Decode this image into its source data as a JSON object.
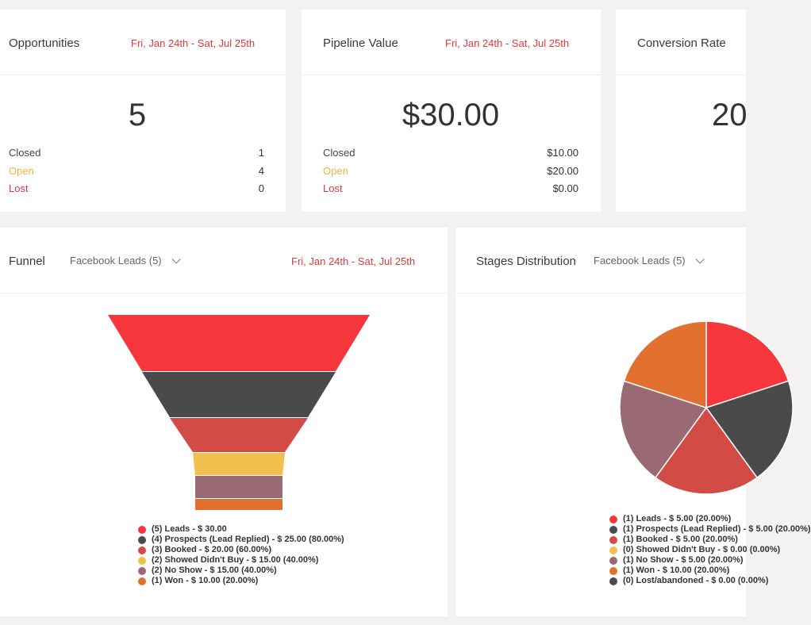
{
  "cards": [
    {
      "title": "Opportunities",
      "date": "Fri, Jan 24th - Sat, Jul 25th",
      "value": "5",
      "rows": [
        {
          "label": "Closed",
          "value": "1"
        },
        {
          "label": "Open",
          "value": "4"
        },
        {
          "label": "Lost",
          "value": "0"
        }
      ]
    },
    {
      "title": "Pipeline Value",
      "date": "Fri, Jan 24th - Sat, Jul 25th",
      "value": "$30.00",
      "rows": [
        {
          "label": "Closed",
          "value": "$10.00"
        },
        {
          "label": "Open",
          "value": "$20.00"
        },
        {
          "label": "Lost",
          "value": "$0.00"
        }
      ]
    },
    {
      "title": "Conversion Rate",
      "value": "20"
    }
  ],
  "funnel": {
    "title": "Funnel",
    "pipeline": "Facebook Leads (5)",
    "date": "Fri, Jan 24th - Sat, Jul 25th",
    "legend": [
      "(5) Leads - $ 30.00",
      "(4) Prospects (Lead Replied) - $ 25.00 (80.00%)",
      "(3) Booked - $ 20.00 (60.00%)",
      "(2) Showed Didn't Buy - $ 15.00 (40.00%)",
      "(2) No Show - $ 15.00 (40.00%)",
      "(1) Won - $ 10.00 (20.00%)"
    ]
  },
  "stages": {
    "title": "Stages Distribution",
    "pipeline": "Facebook Leads (5)",
    "legend": [
      "(1) Leads - $ 5.00 (20.00%)",
      "(1) Prospects (Lead Replied) - $ 5.00 (20.00%)",
      "(1) Booked - $ 5.00 (20.00%)",
      "(0) Showed Didn't Buy - $ 0.00 (0.00%)",
      "(1) No Show - $ 5.00 (20.00%)",
      "(1) Won - $ 10.00 (20.00%)",
      "(0) Lost/abandoned - $ 0.00 (0.00%)"
    ]
  },
  "colors": {
    "red": "#f5373c",
    "dark": "#4a4a4a",
    "booked": "#d24b44",
    "yellow": "#f0bf4c",
    "mauve": "#9a6a74",
    "orange": "#e2702f",
    "date": "#e0393e",
    "open": "#f0b43c"
  },
  "chart_data": [
    {
      "type": "bar",
      "orientation": "funnel",
      "categories": [
        "Leads",
        "Prospects (Lead Replied)",
        "Booked",
        "Showed Didn't Buy",
        "No Show",
        "Won"
      ],
      "values": [
        5,
        4,
        3,
        2,
        2,
        1
      ],
      "amounts": [
        30,
        25,
        20,
        15,
        15,
        10
      ],
      "percent": [
        100,
        80,
        60,
        40,
        40,
        20
      ],
      "colors": [
        "#f5373c",
        "#4a4a4a",
        "#d24b44",
        "#f0bf4c",
        "#9a6a74",
        "#e2702f"
      ],
      "legend_position": "bottom"
    },
    {
      "type": "pie",
      "categories": [
        "Leads",
        "Prospects (Lead Replied)",
        "Booked",
        "Showed Didn't Buy",
        "No Show",
        "Won",
        "Lost/abandoned"
      ],
      "values": [
        1,
        1,
        1,
        0,
        1,
        1,
        0
      ],
      "amounts": [
        5,
        5,
        5,
        0,
        5,
        10,
        0
      ],
      "percent": [
        20,
        20,
        20,
        0,
        20,
        20,
        0
      ],
      "colors": [
        "#f5373c",
        "#4a4a4a",
        "#d24b44",
        "#f0bf4c",
        "#9a6a74",
        "#e2702f",
        "#4a4a4a"
      ],
      "legend_position": "bottom"
    }
  ]
}
